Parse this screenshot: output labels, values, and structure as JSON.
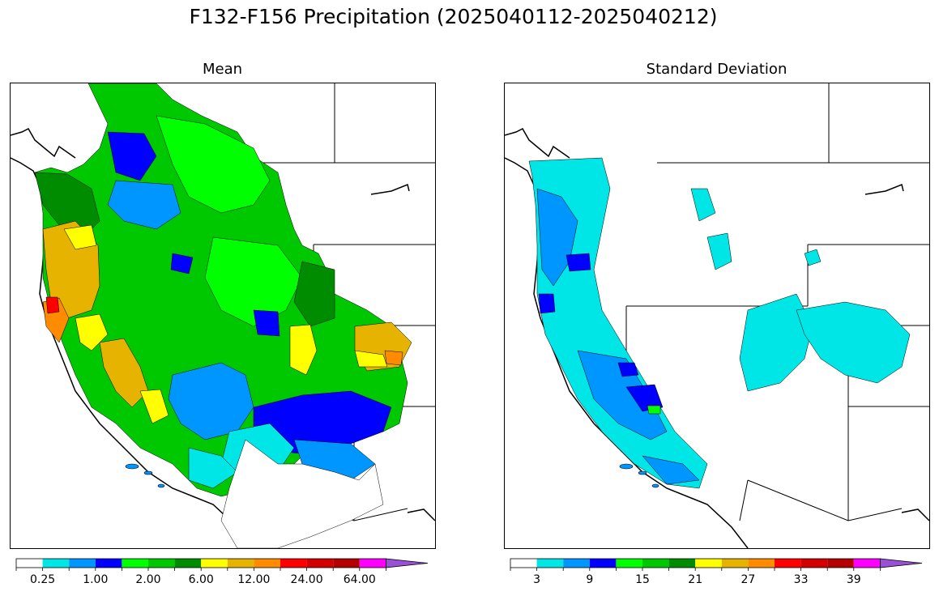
{
  "title": "F132-F156 Precipitation (2025040112-2025040212)",
  "panels": {
    "mean": {
      "title": "Mean"
    },
    "std": {
      "title": "Standard Deviation"
    }
  },
  "colorbar_colors": [
    "#ffffff",
    "#00e5e5",
    "#0096ff",
    "#0000ff",
    "#00ff00",
    "#00c800",
    "#008c00",
    "#ffff00",
    "#e6b400",
    "#ff8c00",
    "#ff0000",
    "#d20000",
    "#b40000",
    "#ff00ff",
    "#9b4fd6"
  ],
  "colorbars": {
    "mean": {
      "tick_labels": [
        "0.25",
        "1.00",
        "2.00",
        "6.00",
        "12.00",
        "24.00",
        "64.00"
      ]
    },
    "std": {
      "tick_labels": [
        "3",
        "9",
        "15",
        "21",
        "27",
        "33",
        "39"
      ]
    }
  }
}
